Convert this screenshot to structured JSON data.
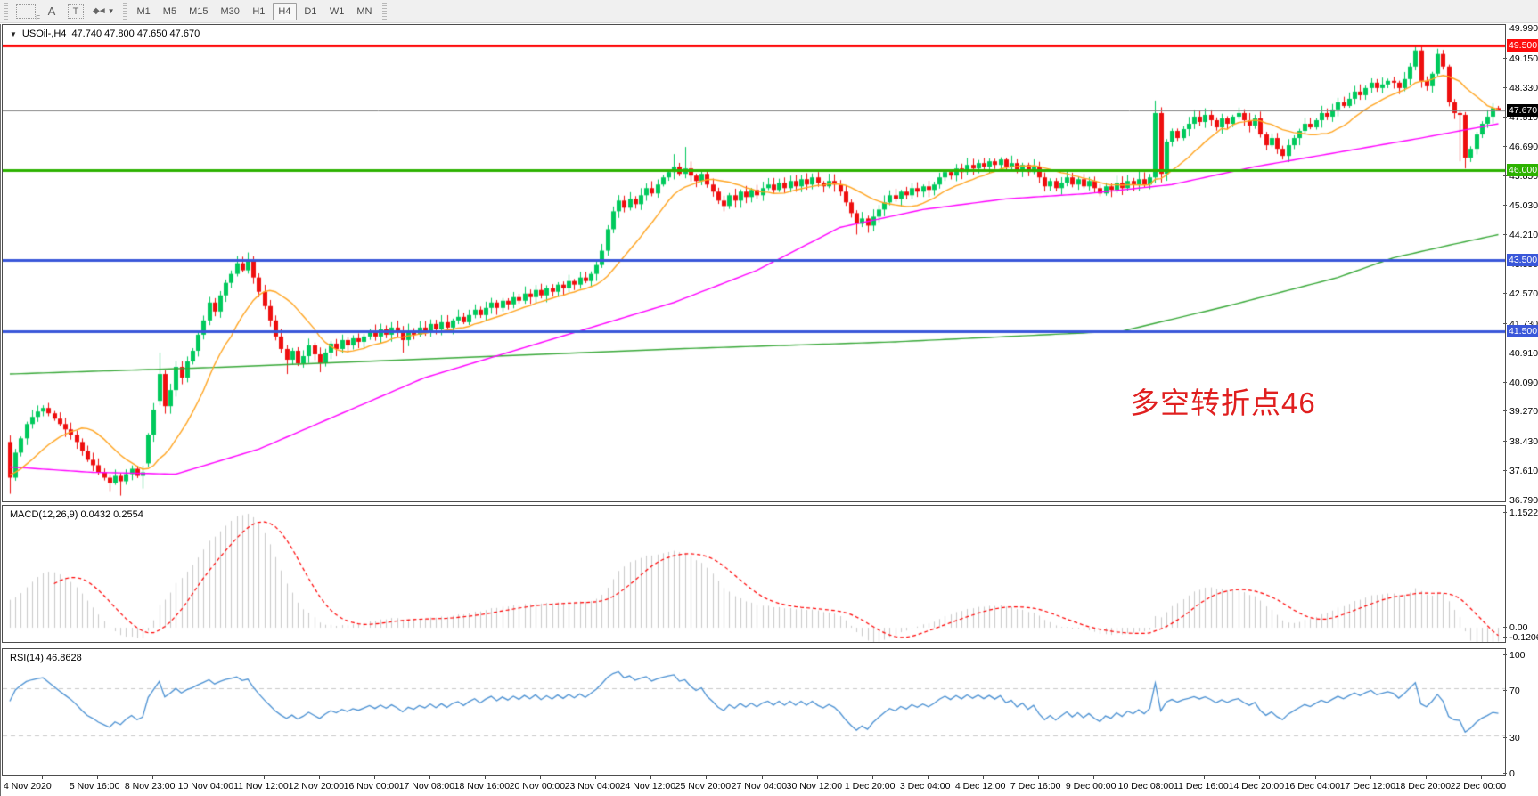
{
  "toolbar": {
    "tools": [
      {
        "name": "chart-template-tool",
        "glyph": "F"
      },
      {
        "name": "text-label-tool",
        "glyph": "A"
      },
      {
        "name": "text-box-tool",
        "glyph": "T"
      },
      {
        "name": "styles-tool",
        "glyph": "◆◄",
        "caret": "▼"
      }
    ],
    "timeframes": [
      "M1",
      "M5",
      "M15",
      "M30",
      "H1",
      "H4",
      "D1",
      "W1",
      "MN"
    ],
    "active_timeframe": "H4"
  },
  "title": {
    "dropdown_icon": "▼",
    "symbol": "USOil-,H4",
    "ohlc": "47.740 47.800 47.650 47.670"
  },
  "indicator_labels": {
    "macd": "MACD(12,26,9) 0.0432 0.2554",
    "rsi": "RSI(14) 46.8628"
  },
  "annotation": {
    "text": "多空转折点46",
    "color": "#e01f1f"
  },
  "colors": {
    "candle_up": "#00c95c",
    "candle_down": "#ee0f0f",
    "ma_fast": "#ffa420",
    "ma_mid": "#ff00ff",
    "ma_slow": "#38a838",
    "macd_hist": "#c9c9c9",
    "macd_signal": "#ff0000",
    "rsi_line": "#4a90d2",
    "grid_dash": "#c8c8c8",
    "current_price_line": "#808080",
    "current_price_badge": "#000000"
  },
  "chart_data": {
    "type": "candlestick",
    "symbol": "USOil",
    "timeframe": "H4",
    "bars": 270,
    "price_axis": {
      "max_price": 49.99,
      "min_price": 36.79,
      "labels": [
        "49.990",
        "49.150",
        "48.330",
        "47.510",
        "46.690",
        "45.850",
        "45.030",
        "44.210",
        "43.390",
        "42.570",
        "41.730",
        "40.910",
        "40.090",
        "39.270",
        "38.430",
        "37.610",
        "36.790"
      ]
    },
    "hlines": [
      {
        "price": 49.5,
        "label": "49.500",
        "color": "#fe0d0d",
        "width": 3
      },
      {
        "price": 46.0,
        "label": "46.000",
        "color": "#2db200",
        "width": 3
      },
      {
        "price": 43.5,
        "label": "43.500",
        "color": "#3a57d9",
        "width": 3
      },
      {
        "price": 41.5,
        "label": "41.500",
        "color": "#3a57d9",
        "width": 3
      }
    ],
    "current_price": {
      "value": 47.67,
      "label": "47.670"
    },
    "candles": {
      "closes": [
        37.4,
        38.1,
        38.5,
        38.9,
        39.1,
        39.25,
        39.35,
        39.2,
        39.05,
        38.9,
        38.75,
        38.6,
        38.4,
        38.15,
        37.9,
        37.75,
        37.55,
        37.4,
        37.25,
        37.45,
        37.3,
        37.5,
        37.65,
        37.45,
        37.55,
        38.6,
        39.3,
        40.3,
        39.4,
        39.85,
        40.5,
        40.2,
        40.65,
        40.95,
        41.4,
        41.8,
        42.3,
        42.05,
        42.5,
        42.85,
        43.1,
        43.4,
        43.2,
        43.45,
        43.0,
        42.6,
        42.2,
        41.8,
        41.35,
        41.0,
        40.7,
        40.95,
        40.6,
        40.8,
        41.1,
        40.85,
        40.6,
        40.9,
        41.15,
        41.0,
        41.25,
        41.1,
        41.3,
        41.2,
        41.35,
        41.5,
        41.35,
        41.55,
        41.4,
        41.6,
        41.45,
        41.25,
        41.5,
        41.4,
        41.6,
        41.5,
        41.7,
        41.55,
        41.75,
        41.6,
        41.8,
        41.9,
        41.75,
        41.95,
        42.1,
        41.95,
        42.15,
        42.3,
        42.15,
        42.35,
        42.25,
        42.45,
        42.35,
        42.55,
        42.45,
        42.65,
        42.5,
        42.7,
        42.6,
        42.8,
        42.7,
        42.9,
        42.8,
        43.0,
        42.9,
        43.1,
        43.35,
        43.75,
        44.35,
        44.85,
        45.15,
        44.95,
        45.2,
        45.05,
        45.3,
        45.5,
        45.35,
        45.6,
        45.8,
        45.95,
        46.1,
        45.9,
        46.05,
        45.85,
        45.7,
        45.9,
        45.6,
        45.4,
        45.15,
        45.0,
        45.3,
        45.15,
        45.4,
        45.25,
        45.45,
        45.3,
        45.5,
        45.6,
        45.45,
        45.65,
        45.5,
        45.7,
        45.55,
        45.75,
        45.6,
        45.8,
        45.65,
        45.55,
        45.7,
        45.6,
        45.4,
        45.1,
        44.8,
        44.5,
        44.65,
        44.45,
        44.7,
        44.9,
        45.1,
        45.3,
        45.2,
        45.4,
        45.3,
        45.5,
        45.4,
        45.55,
        45.45,
        45.6,
        45.8,
        45.95,
        45.85,
        46.05,
        45.95,
        46.15,
        46.05,
        46.2,
        46.1,
        46.25,
        46.15,
        46.3,
        46.1,
        46.2,
        46.0,
        46.15,
        45.95,
        46.1,
        45.8,
        45.55,
        45.7,
        45.5,
        45.65,
        45.8,
        45.6,
        45.75,
        45.55,
        45.7,
        45.5,
        45.35,
        45.55,
        45.45,
        45.65,
        45.5,
        45.7,
        45.6,
        45.75,
        45.6,
        45.8,
        47.6,
        45.9,
        46.8,
        47.1,
        46.9,
        47.15,
        47.3,
        47.5,
        47.35,
        47.55,
        47.4,
        47.2,
        47.45,
        47.3,
        47.5,
        47.6,
        47.4,
        47.25,
        47.45,
        47.0,
        46.7,
        46.9,
        46.6,
        46.4,
        46.7,
        46.9,
        47.1,
        47.3,
        47.2,
        47.4,
        47.6,
        47.5,
        47.7,
        47.9,
        47.8,
        48.0,
        48.2,
        48.1,
        48.3,
        48.45,
        48.3,
        48.4,
        48.5,
        48.45,
        48.3,
        48.55,
        48.9,
        49.35,
        48.5,
        48.35,
        48.7,
        49.25,
        48.9,
        47.9,
        47.6,
        47.55,
        46.35,
        46.6,
        47.0,
        47.3,
        47.5,
        47.74,
        47.67
      ],
      "open_overrides": {
        "0": 38.4,
        "25": 37.8,
        "27": 39.55
      },
      "wick_overrides": {
        "0": {
          "low": 36.95
        },
        "18": {
          "low": 37.0
        },
        "20": {
          "low": 36.9
        },
        "24": {
          "low": 37.1
        },
        "27": {
          "high": 40.9
        },
        "41": {
          "high": 43.6
        },
        "43": {
          "high": 43.7
        },
        "50": {
          "low": 40.3
        },
        "56": {
          "low": 40.35
        },
        "71": {
          "low": 40.9
        },
        "120": {
          "high": 46.45
        },
        "122": {
          "high": 46.65
        },
        "129": {
          "low": 44.85
        },
        "153": {
          "low": 44.2
        },
        "155": {
          "low": 44.25
        },
        "207": {
          "high": 47.95
        },
        "208": {
          "low": 45.66
        },
        "230": {
          "low": 46.3
        },
        "254": {
          "high": 49.45
        },
        "258": {
          "high": 49.4
        },
        "262": {
          "low": 46.25
        },
        "263": {
          "low": 46.05
        },
        "269": {
          "high": 47.8,
          "low": 47.65
        }
      },
      "prehistory": [
        36.1,
        36.3,
        36.2,
        36.5,
        36.4,
        36.6,
        36.45,
        36.7,
        36.6,
        36.85,
        36.75,
        37.0,
        36.9,
        37.15,
        37.05,
        37.3,
        37.2,
        37.45,
        37.35,
        37.55,
        37.45,
        37.65,
        37.55,
        37.75,
        37.65,
        37.8
      ]
    },
    "moving_averages": [
      {
        "name": "fast-sma",
        "period": 13,
        "computed": true
      },
      {
        "name": "mid-ma",
        "anchors": [
          [
            0,
            37.7
          ],
          [
            15,
            37.55
          ],
          [
            30,
            37.5
          ],
          [
            45,
            38.2
          ],
          [
            60,
            39.2
          ],
          [
            75,
            40.2
          ],
          [
            90,
            40.9
          ],
          [
            105,
            41.6
          ],
          [
            120,
            42.3
          ],
          [
            135,
            43.2
          ],
          [
            150,
            44.4
          ],
          [
            165,
            44.9
          ],
          [
            180,
            45.2
          ],
          [
            195,
            45.35
          ],
          [
            210,
            45.6
          ],
          [
            225,
            46.1
          ],
          [
            240,
            46.5
          ],
          [
            255,
            46.9
          ],
          [
            269,
            47.3
          ]
        ]
      },
      {
        "name": "slow-ma",
        "anchors": [
          [
            0,
            40.3
          ],
          [
            40,
            40.5
          ],
          [
            80,
            40.75
          ],
          [
            120,
            41.0
          ],
          [
            160,
            41.2
          ],
          [
            201,
            41.5
          ],
          [
            220,
            42.2
          ],
          [
            230,
            42.6
          ],
          [
            240,
            43.0
          ],
          [
            250,
            43.55
          ],
          [
            260,
            43.9
          ],
          [
            269,
            44.2
          ]
        ]
      }
    ],
    "macd": {
      "params": "12,26,9",
      "value": "0.0432",
      "signal_value": "0.2554",
      "axis_labels": [
        "1.1522",
        "0.00",
        "-0.1206"
      ],
      "axis_values": [
        1.1522,
        0.0,
        -0.1206
      ]
    },
    "rsi": {
      "period": 14,
      "value": "46.8628",
      "axis_labels": [
        "100",
        "70",
        "30",
        "0"
      ],
      "axis_values": [
        100,
        70,
        30,
        0
      ],
      "guide_levels": [
        70,
        30
      ]
    },
    "x_axis": {
      "date_labels": [
        "4 Nov 2020",
        "5 Nov 16:00",
        "8 Nov 23:00",
        "10 Nov 04:00",
        "11 Nov 12:00",
        "12 Nov 20:00",
        "16 Nov 00:00",
        "17 Nov 08:00",
        "18 Nov 16:00",
        "20 Nov 00:00",
        "23 Nov 04:00",
        "24 Nov 12:00",
        "25 Nov 20:00",
        "27 Nov 04:00",
        "30 Nov 12:00",
        "1 Dec 20:00",
        "3 Dec 04:00",
        "4 Dec 12:00",
        "7 Dec 16:00",
        "9 Dec 00:00",
        "10 Dec 08:00",
        "11 Dec 16:00",
        "14 Dec 20:00",
        "16 Dec 04:00",
        "17 Dec 12:00",
        "18 Dec 20:00",
        "22 Dec 00:00"
      ],
      "bars_per_label": 10,
      "first_label_bar": 6
    }
  }
}
